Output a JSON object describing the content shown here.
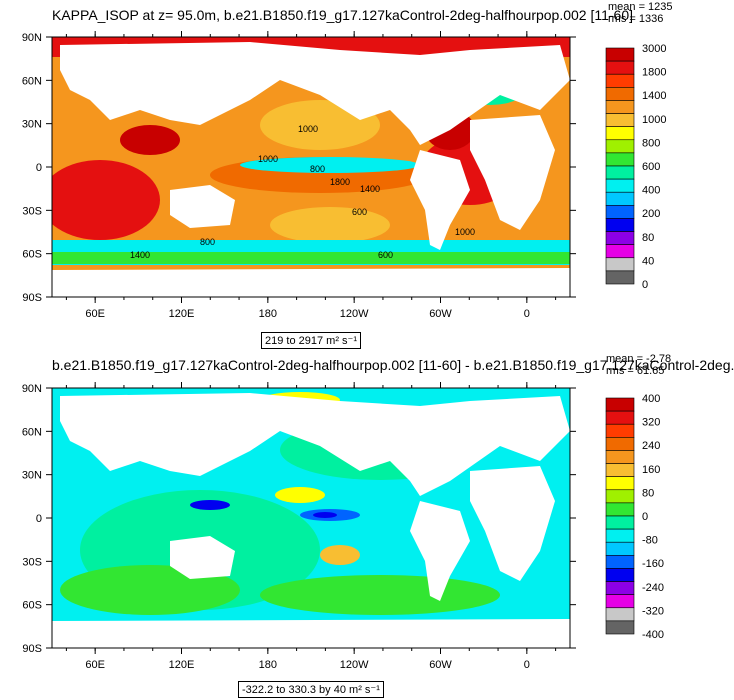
{
  "panels": [
    {
      "title": "KAPPA_ISOP at z=  95.0m, b.e21.B1850.f19_g17.127kaControl-2deg-halfhourpop.002 [11-60]",
      "mean_label": "mean = 1235",
      "rms_label": "rms = 1336",
      "range_label": "219 to 2917 m² s⁻¹",
      "colorbar": {
        "labels": [
          "3000",
          "1800",
          "1400",
          "1000",
          "800",
          "600",
          "400",
          "200",
          "80",
          "40",
          "0"
        ],
        "colors": [
          "#c80000",
          "#e41010",
          "#ff3c00",
          "#f06a00",
          "#f5961e",
          "#f8be32",
          "#ffff00",
          "#a0f000",
          "#32e632",
          "#00f0a0",
          "#00f0f0",
          "#00c8ff",
          "#0064ff",
          "#0000f0",
          "#8c00e6",
          "#e600e6",
          "#c8c8c8",
          "#646464"
        ]
      },
      "contour_labels": [
        "1000",
        "1000",
        "800",
        "600",
        "1400",
        "800",
        "1800",
        "1000",
        "600",
        "1400"
      ]
    },
    {
      "title": "b.e21.B1850.f19_g17.127kaControl-2deg-halfhourpop.002 [11-60] - b.e21.B1850.f19_g17.127kaControl-2deg.",
      "mean_label": "mean = -2.78",
      "rms_label": "rms = 61.65",
      "range_label": "-322.2 to 330.3 by 40 m² s⁻¹",
      "colorbar": {
        "labels": [
          "400",
          "320",
          "240",
          "160",
          "80",
          "0",
          "-80",
          "-160",
          "-240",
          "-320",
          "-400"
        ],
        "colors": [
          "#c80000",
          "#e41010",
          "#ff3c00",
          "#f06a00",
          "#f5961e",
          "#f8be32",
          "#ffff00",
          "#a0f000",
          "#32e632",
          "#00f0a0",
          "#00f0f0",
          "#00c8ff",
          "#0064ff",
          "#0000f0",
          "#8c00e6",
          "#e600e6",
          "#c8c8c8",
          "#646464"
        ]
      }
    }
  ],
  "axes": {
    "y_ticks": [
      "90N",
      "60N",
      "30N",
      "0",
      "30S",
      "60S",
      "90S"
    ],
    "x_ticks": [
      "60E",
      "120E",
      "180",
      "120W",
      "60W",
      "0"
    ]
  },
  "chart_data": [
    {
      "type": "heatmap",
      "title": "KAPPA_ISOP at z=  95.0m, b.e21.B1850.f19_g17.127kaControl-2deg-halfhourpop.002 [11-60]",
      "units": "m² s⁻¹",
      "x_ticks": [
        "60E",
        "120E",
        "180",
        "120W",
        "60W",
        "0"
      ],
      "y_ticks": [
        "90N",
        "60N",
        "30N",
        "0",
        "30S",
        "60S",
        "90S"
      ],
      "xlim": [
        30,
        390
      ],
      "ylim": [
        -90,
        90
      ],
      "levels": [
        0,
        40,
        80,
        200,
        400,
        600,
        800,
        1000,
        1400,
        1800,
        3000
      ],
      "mean": 1235,
      "rms": 1336,
      "min": 219,
      "max": 2917
    },
    {
      "type": "heatmap",
      "title": "b.e21.B1850.f19_g17.127kaControl-2deg-halfhourpop.002 [11-60] - b.e21.B1850.f19_g17.127kaControl-2deg.",
      "units": "m² s⁻¹",
      "x_ticks": [
        "60E",
        "120E",
        "180",
        "120W",
        "60W",
        "0"
      ],
      "y_ticks": [
        "90N",
        "60N",
        "30N",
        "0",
        "30S",
        "60S",
        "90S"
      ],
      "xlim": [
        30,
        390
      ],
      "ylim": [
        -90,
        90
      ],
      "levels": [
        -400,
        -320,
        -240,
        -160,
        -80,
        0,
        80,
        160,
        240,
        320,
        400
      ],
      "contour_interval": 40,
      "mean": -2.78,
      "rms": 61.65,
      "min": -322.2,
      "max": 330.3
    }
  ]
}
